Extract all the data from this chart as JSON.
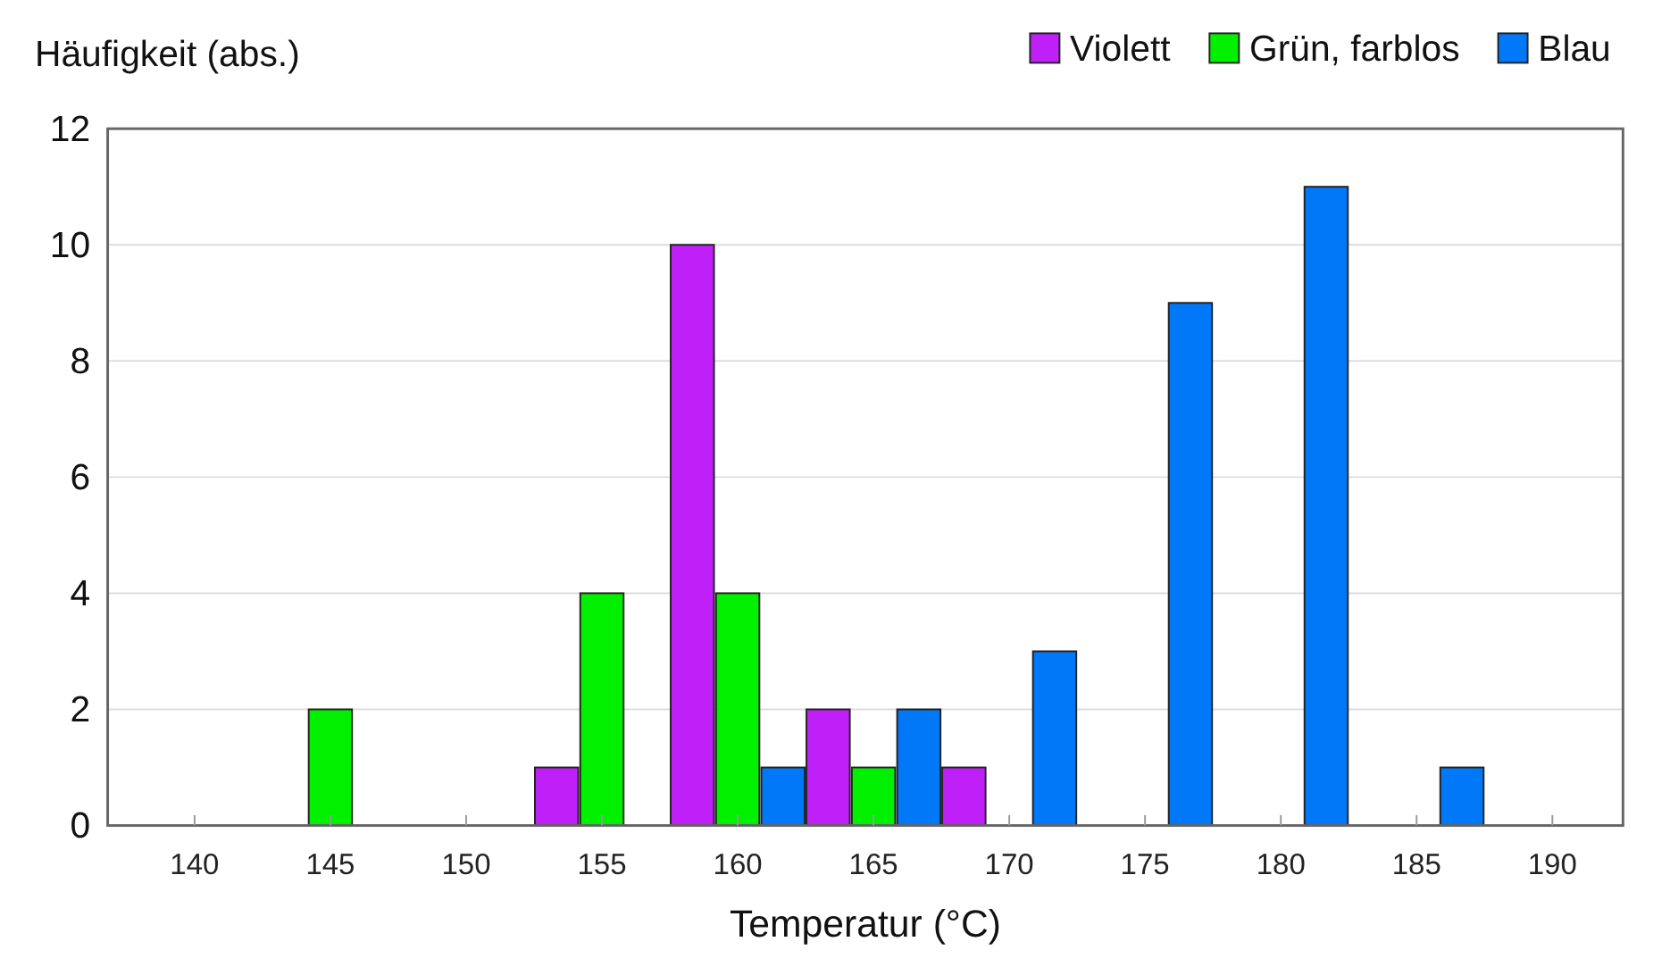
{
  "chart_data": {
    "type": "bar",
    "xlabel": "Temperatur (°C)",
    "ylabel": "Häufigkeit (abs.)",
    "xlim": [
      136.8,
      192.6
    ],
    "xticks": [
      140,
      145,
      150,
      155,
      160,
      165,
      170,
      175,
      180,
      185,
      190
    ],
    "ylim": [
      0,
      12
    ],
    "yticks": [
      0,
      2,
      4,
      6,
      8,
      10,
      12
    ],
    "grid": "y",
    "legend": "top right",
    "series": [
      {
        "name": "Violett",
        "color": "#c020f8",
        "x": [
          153.33,
          158.33,
          163.33,
          168.33
        ],
        "values": [
          1,
          10,
          2,
          1
        ]
      },
      {
        "name": "Grün, farblos",
        "color": "#00f000",
        "x": [
          145,
          155,
          160,
          165
        ],
        "values": [
          2,
          4,
          4,
          1
        ]
      },
      {
        "name": "Blau",
        "color": "#0078f8",
        "x": [
          161.67,
          166.67,
          171.67,
          176.67,
          181.67,
          186.67
        ],
        "values": [
          1,
          2,
          3,
          9,
          11,
          1
        ]
      }
    ]
  }
}
